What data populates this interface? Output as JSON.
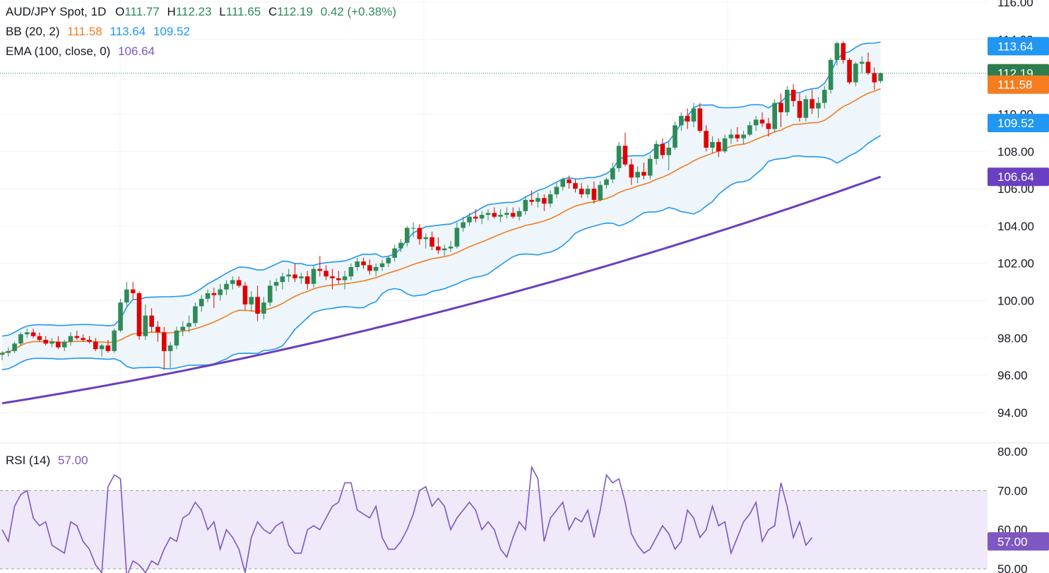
{
  "header": {
    "symbol": "AUD/JPY Spot, 1D",
    "o_label": "O",
    "o": "111.77",
    "h_label": "H",
    "h": "112.23",
    "l_label": "L",
    "l": "111.65",
    "c_label": "C",
    "c": "112.19",
    "change": "0.42 (+0.38%)"
  },
  "indicators": {
    "bb_label": "BB (20, 2)",
    "bb_basis": "111.58",
    "bb_upper": "113.64",
    "bb_lower": "109.52",
    "ema_label": "EMA (100, close, 0)",
    "ema_value": "106.64",
    "rsi_label": "RSI (14)",
    "rsi_value": "57.00"
  },
  "colors": {
    "up": "#2e8b57",
    "down": "#e00000",
    "bb_band": "#2196f3",
    "bb_basis": "#f57c1f",
    "bb_fill": "#eef6fc",
    "ema": "#6a3fc1",
    "rsi": "#7e57c2",
    "rsi_fill": "#efe9fa",
    "last_price": "#2e7d4f"
  },
  "chart_data": [
    {
      "type": "candlestick",
      "title": "AUD/JPY Spot, 1D",
      "y_axis_ticks": [
        "116.00",
        "114.00",
        "112.00",
        "110.00",
        "108.00",
        "106.00",
        "104.00",
        "102.00",
        "100.00",
        "98.00",
        "96.00",
        "94.00"
      ],
      "ylim": [
        93.5,
        116.1
      ],
      "price_labels": [
        {
          "value": 113.64,
          "text": "113.64",
          "series": "BB upper"
        },
        {
          "value": 112.19,
          "text": "112.19",
          "series": "last close"
        },
        {
          "value": 111.58,
          "text": "111.58",
          "series": "BB basis"
        },
        {
          "value": 109.52,
          "text": "109.52",
          "series": "BB lower"
        },
        {
          "value": 106.64,
          "text": "106.64",
          "series": "EMA 100"
        }
      ],
      "candles": [
        [
          97.1,
          97.3,
          96.8,
          97.2
        ],
        [
          97.2,
          97.5,
          97.0,
          97.3
        ],
        [
          97.3,
          97.8,
          97.2,
          97.7
        ],
        [
          97.7,
          98.3,
          97.6,
          98.2
        ],
        [
          98.2,
          98.5,
          98.0,
          98.3
        ],
        [
          98.3,
          98.5,
          98.0,
          98.1
        ],
        [
          98.1,
          98.3,
          97.8,
          97.9
        ],
        [
          97.9,
          98.1,
          97.6,
          97.7
        ],
        [
          97.7,
          98.0,
          97.5,
          97.8
        ],
        [
          97.8,
          98.1,
          97.4,
          97.5
        ],
        [
          97.5,
          97.9,
          97.3,
          97.8
        ],
        [
          97.8,
          98.3,
          97.6,
          98.1
        ],
        [
          98.1,
          98.4,
          97.9,
          98.0
        ],
        [
          98.0,
          98.2,
          97.8,
          97.9
        ],
        [
          97.9,
          98.1,
          97.7,
          97.8
        ],
        [
          97.8,
          98.0,
          97.3,
          97.4
        ],
        [
          97.4,
          97.7,
          97.0,
          97.6
        ],
        [
          97.6,
          97.9,
          97.2,
          97.3
        ],
        [
          97.3,
          98.5,
          97.2,
          98.4
        ],
        [
          98.4,
          100.1,
          98.3,
          99.9
        ],
        [
          99.9,
          101.0,
          99.7,
          100.6
        ],
        [
          100.6,
          101.0,
          100.1,
          100.4
        ],
        [
          100.4,
          100.5,
          97.9,
          98.1
        ],
        [
          98.1,
          99.8,
          97.9,
          99.2
        ],
        [
          99.2,
          99.6,
          98.3,
          98.6
        ],
        [
          98.6,
          98.9,
          97.8,
          98.3
        ],
        [
          98.3,
          98.6,
          96.3,
          97.3
        ],
        [
          97.3,
          97.8,
          96.4,
          97.6
        ],
        [
          97.6,
          98.6,
          97.4,
          98.4
        ],
        [
          98.4,
          98.9,
          98.1,
          98.6
        ],
        [
          98.6,
          99.2,
          98.3,
          98.8
        ],
        [
          98.8,
          99.9,
          98.6,
          99.7
        ],
        [
          99.7,
          100.3,
          99.4,
          100.1
        ],
        [
          100.1,
          100.6,
          99.9,
          100.4
        ],
        [
          100.4,
          100.7,
          99.6,
          100.3
        ],
        [
          100.3,
          100.9,
          100.0,
          100.6
        ],
        [
          100.6,
          101.1,
          100.3,
          100.9
        ],
        [
          100.9,
          101.3,
          100.6,
          101.1
        ],
        [
          101.1,
          101.3,
          100.7,
          100.8
        ],
        [
          100.8,
          101.0,
          99.5,
          99.8
        ],
        [
          99.8,
          100.5,
          99.4,
          100.2
        ],
        [
          100.2,
          100.8,
          98.9,
          99.3
        ],
        [
          99.3,
          100.2,
          99.0,
          99.9
        ],
        [
          99.9,
          101.1,
          99.7,
          100.8
        ],
        [
          100.8,
          101.2,
          100.5,
          101.0
        ],
        [
          101.0,
          101.5,
          100.6,
          101.3
        ],
        [
          101.3,
          101.7,
          101.0,
          101.4
        ],
        [
          101.4,
          102.0,
          101.0,
          101.2
        ],
        [
          101.2,
          101.5,
          100.9,
          101.3
        ],
        [
          101.3,
          101.6,
          100.6,
          100.9
        ],
        [
          100.9,
          101.9,
          100.7,
          101.7
        ],
        [
          101.7,
          102.4,
          101.3,
          101.6
        ],
        [
          101.6,
          101.9,
          101.1,
          101.3
        ],
        [
          101.3,
          101.7,
          100.6,
          101.2
        ],
        [
          101.2,
          101.6,
          100.9,
          101.1
        ],
        [
          101.1,
          101.6,
          100.6,
          101.3
        ],
        [
          101.3,
          102.0,
          101.1,
          101.8
        ],
        [
          101.8,
          102.3,
          101.6,
          102.1
        ],
        [
          102.1,
          102.3,
          101.7,
          101.9
        ],
        [
          101.9,
          102.2,
          101.4,
          101.6
        ],
        [
          101.6,
          102.0,
          101.3,
          101.8
        ],
        [
          101.8,
          102.2,
          101.6,
          102.0
        ],
        [
          102.0,
          102.4,
          101.8,
          102.3
        ],
        [
          102.3,
          103.0,
          102.1,
          102.8
        ],
        [
          102.8,
          103.3,
          102.6,
          103.1
        ],
        [
          103.1,
          104.0,
          102.9,
          103.9
        ],
        [
          103.9,
          104.2,
          103.4,
          103.9
        ],
        [
          103.9,
          104.1,
          103.0,
          103.3
        ],
        [
          103.3,
          103.6,
          102.8,
          103.4
        ],
        [
          103.4,
          103.7,
          102.7,
          102.9
        ],
        [
          102.9,
          103.4,
          102.5,
          102.7
        ],
        [
          102.7,
          103.0,
          102.4,
          102.8
        ],
        [
          102.8,
          103.2,
          102.6,
          102.9
        ],
        [
          102.9,
          104.2,
          102.8,
          103.9
        ],
        [
          103.9,
          104.5,
          103.7,
          104.2
        ],
        [
          104.2,
          104.7,
          104.0,
          104.5
        ],
        [
          104.5,
          104.9,
          104.2,
          104.4
        ],
        [
          104.4,
          104.8,
          104.1,
          104.6
        ],
        [
          104.6,
          104.9,
          104.3,
          104.7
        ],
        [
          104.7,
          105.0,
          104.4,
          104.5
        ],
        [
          104.5,
          104.9,
          104.2,
          104.6
        ],
        [
          104.6,
          105.0,
          104.4,
          104.7
        ],
        [
          104.7,
          105.0,
          104.4,
          104.5
        ],
        [
          104.5,
          105.0,
          104.3,
          104.8
        ],
        [
          104.8,
          105.6,
          104.6,
          105.4
        ],
        [
          105.4,
          105.9,
          105.1,
          105.3
        ],
        [
          105.3,
          105.8,
          105.0,
          105.5
        ],
        [
          105.5,
          105.7,
          104.8,
          105.2
        ],
        [
          105.2,
          105.9,
          105.0,
          105.7
        ],
        [
          105.7,
          106.3,
          105.5,
          106.1
        ],
        [
          106.1,
          106.6,
          105.9,
          106.5
        ],
        [
          106.5,
          106.7,
          106.0,
          106.3
        ],
        [
          106.3,
          106.5,
          105.8,
          106.0
        ],
        [
          106.0,
          106.3,
          105.5,
          105.7
        ],
        [
          105.7,
          106.2,
          105.5,
          106.0
        ],
        [
          106.0,
          106.4,
          105.2,
          105.4
        ],
        [
          105.4,
          106.4,
          105.3,
          106.2
        ],
        [
          106.2,
          106.6,
          106.0,
          106.5
        ],
        [
          106.5,
          107.4,
          106.3,
          107.1
        ],
        [
          107.1,
          108.5,
          106.9,
          108.3
        ],
        [
          108.3,
          109.0,
          107.2,
          107.3
        ],
        [
          107.3,
          107.6,
          106.2,
          106.6
        ],
        [
          106.6,
          107.2,
          106.3,
          106.9
        ],
        [
          106.9,
          107.4,
          106.5,
          106.7
        ],
        [
          106.7,
          107.8,
          106.5,
          107.6
        ],
        [
          107.6,
          108.6,
          107.3,
          108.4
        ],
        [
          108.4,
          108.7,
          107.6,
          107.8
        ],
        [
          107.8,
          108.5,
          107.0,
          108.2
        ],
        [
          108.2,
          109.6,
          108.1,
          109.4
        ],
        [
          109.4,
          110.1,
          109.1,
          109.9
        ],
        [
          109.9,
          110.3,
          109.2,
          109.6
        ],
        [
          109.6,
          110.6,
          109.3,
          110.3
        ],
        [
          110.3,
          110.6,
          109.0,
          109.1
        ],
        [
          109.1,
          109.4,
          108.0,
          108.2
        ],
        [
          108.2,
          108.8,
          107.9,
          108.5
        ],
        [
          108.5,
          108.7,
          107.7,
          108.0
        ],
        [
          108.0,
          108.9,
          107.9,
          108.7
        ],
        [
          108.7,
          109.2,
          108.4,
          108.9
        ],
        [
          108.9,
          109.3,
          108.5,
          108.7
        ],
        [
          108.7,
          109.1,
          108.4,
          108.9
        ],
        [
          108.9,
          109.6,
          108.8,
          109.4
        ],
        [
          109.4,
          109.9,
          109.1,
          109.7
        ],
        [
          109.7,
          110.1,
          109.3,
          109.5
        ],
        [
          109.5,
          109.8,
          108.8,
          109.2
        ],
        [
          109.2,
          110.8,
          109.0,
          110.6
        ],
        [
          110.6,
          111.1,
          109.3,
          110.1
        ],
        [
          110.1,
          111.5,
          109.9,
          111.3
        ],
        [
          111.3,
          111.6,
          110.4,
          110.7
        ],
        [
          110.7,
          111.1,
          109.6,
          109.8
        ],
        [
          109.8,
          111.0,
          109.6,
          110.8
        ],
        [
          110.8,
          111.3,
          110.0,
          110.3
        ],
        [
          110.3,
          110.9,
          109.8,
          110.6
        ],
        [
          110.6,
          111.5,
          110.3,
          111.3
        ],
        [
          111.3,
          113.0,
          111.1,
          112.9
        ],
        [
          112.9,
          113.9,
          112.6,
          113.8
        ],
        [
          113.8,
          113.9,
          112.7,
          112.9
        ],
        [
          112.9,
          113.0,
          111.6,
          111.7
        ],
        [
          111.7,
          112.8,
          111.5,
          112.7
        ],
        [
          112.7,
          113.1,
          112.2,
          112.8
        ],
        [
          112.8,
          113.3,
          112.1,
          112.2
        ],
        [
          112.2,
          112.5,
          111.3,
          111.7
        ],
        [
          111.77,
          112.23,
          111.65,
          112.19
        ]
      ]
    },
    {
      "type": "line",
      "title": "RSI (14)",
      "y_axis_ticks": [
        "80.00",
        "70.00",
        "60.00",
        "50.00"
      ],
      "ylim": [
        49.5,
        80.5
      ],
      "reference_lines": [
        70,
        50
      ],
      "values": [
        60,
        57,
        66,
        69,
        70,
        63,
        61,
        62,
        56,
        55,
        54,
        62,
        61,
        57,
        55,
        51,
        49,
        71,
        74,
        73,
        48,
        52,
        51,
        49,
        52,
        51,
        55,
        58,
        57,
        63,
        64,
        67,
        65,
        60,
        62,
        55,
        60,
        58,
        55,
        49,
        58,
        62,
        60,
        59,
        61,
        62,
        56,
        54,
        54,
        60,
        61,
        60,
        63,
        66,
        67,
        72,
        72,
        65,
        64,
        63,
        66,
        58,
        55,
        55,
        57,
        60,
        64,
        70,
        71,
        66,
        68,
        66,
        60,
        63,
        65,
        67,
        65,
        60,
        62,
        60,
        55,
        53,
        58,
        62,
        60,
        76,
        73,
        57,
        63,
        65,
        67,
        60,
        63,
        62,
        65,
        58,
        65,
        74,
        72,
        73,
        67,
        59,
        56,
        54,
        55,
        58,
        61,
        59,
        55,
        57,
        65,
        63,
        58,
        60,
        66,
        61,
        62,
        54,
        58,
        62,
        64,
        67,
        57,
        60,
        61,
        72,
        66,
        58,
        62,
        56,
        58
      ]
    }
  ]
}
